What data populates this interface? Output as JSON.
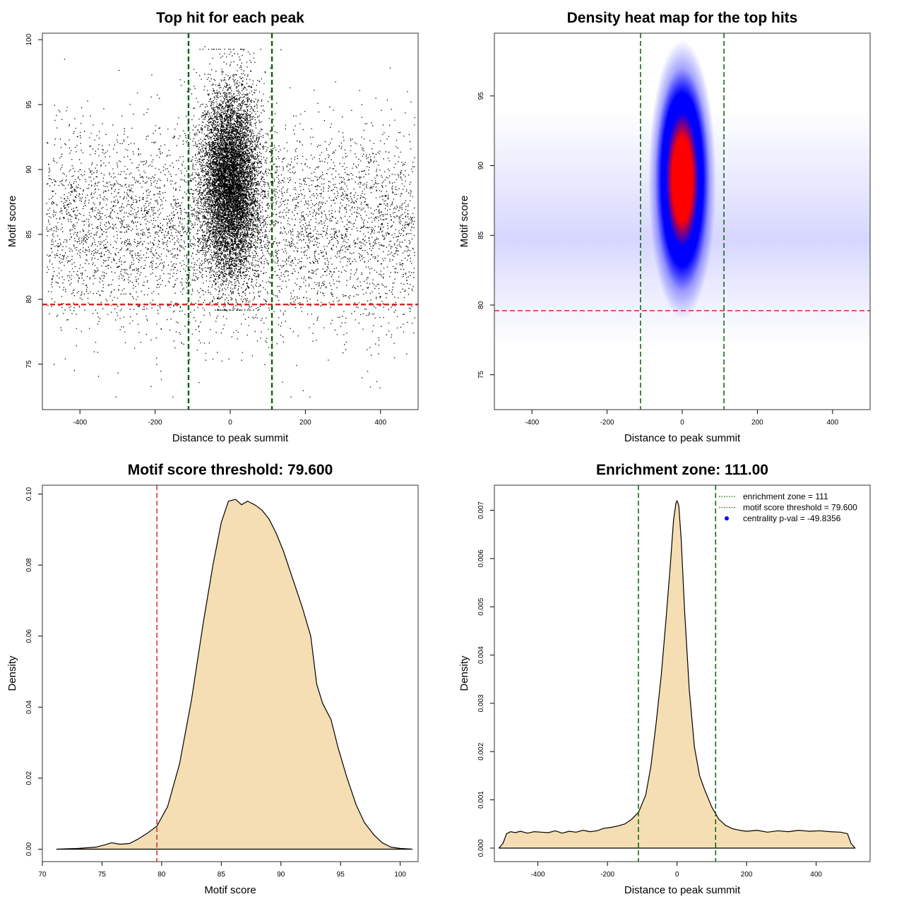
{
  "chart_data": [
    {
      "type": "scatter",
      "title": "Top hit for each peak",
      "xlabel": "Distance to peak summit",
      "ylabel": "Motif score",
      "xlim": [
        -500,
        500
      ],
      "ylim": [
        71.5,
        100.5
      ],
      "x_ticks": [
        -400,
        -200,
        0,
        200,
        400
      ],
      "x_tick_labels": [
        "-400",
        "-200",
        "0",
        "200",
        "400"
      ],
      "y_ticks": [
        75,
        80,
        85,
        90,
        95,
        100
      ],
      "y_tick_labels": [
        "75",
        "80",
        "85",
        "90",
        "95",
        "100"
      ],
      "threshold": {
        "axis": "y",
        "value": 79.6,
        "color": "#d62728",
        "style": "dashed"
      },
      "zone_lines": {
        "axis": "x",
        "values": [
          -111,
          111
        ],
        "color": "#006400",
        "style": "dashed"
      },
      "point_color": "#000000",
      "points_description": {
        "background": {
          "x_range": [
            -490,
            490
          ],
          "y_center": 85.5,
          "y_spread": 3.8,
          "count": 5200
        },
        "central": {
          "x_center": 0,
          "x_spread": 38,
          "y_center": 89,
          "y_spread": 3.6,
          "count": 9000
        }
      }
    },
    {
      "type": "heatmap",
      "title": "Density heat map for the top hits",
      "xlabel": "Distance to peak summit",
      "ylabel": "Motif score",
      "xlim": [
        -500,
        500
      ],
      "ylim": [
        72.5,
        99.5
      ],
      "x_ticks": [
        -400,
        -200,
        0,
        200,
        400
      ],
      "x_tick_labels": [
        "-400",
        "-200",
        "0",
        "200",
        "400"
      ],
      "y_ticks": [
        75,
        80,
        85,
        90,
        95
      ],
      "y_tick_labels": [
        "75",
        "80",
        "85",
        "90",
        "95"
      ],
      "colors": [
        "#ffffff",
        "#0000ff",
        "#ff0000"
      ],
      "peak": {
        "x": 0,
        "y": 89
      },
      "threshold": {
        "axis": "y",
        "value": 79.6,
        "color": "#d62728",
        "style": "dashed"
      },
      "zone_lines": {
        "axis": "x",
        "values": [
          -111,
          111
        ],
        "color": "#006400",
        "style": "dashed"
      }
    },
    {
      "type": "area",
      "title": "Motif score threshold: 79.600",
      "xlabel": "Motif score",
      "ylabel": "Density",
      "xlim": [
        70,
        101.5
      ],
      "ylim": [
        -0.0035,
        0.1025
      ],
      "x_ticks": [
        70,
        75,
        80,
        85,
        90,
        95,
        100
      ],
      "x_tick_labels": [
        "70",
        "75",
        "80",
        "85",
        "90",
        "95",
        "100"
      ],
      "y_ticks": [
        0,
        0.02,
        0.04,
        0.06,
        0.08,
        0.1
      ],
      "y_tick_labels": [
        "0.00",
        "0.02",
        "0.04",
        "0.06",
        "0.08",
        "0.10"
      ],
      "fill": "#f5deb3",
      "x": [
        71.2,
        73,
        74.5,
        75.2,
        75.8,
        76.5,
        77.3,
        78,
        78.8,
        79.6,
        80.5,
        81.5,
        82.5,
        83.5,
        84.3,
        85,
        85.6,
        86.2,
        86.7,
        87.2,
        87.8,
        88.4,
        89,
        89.6,
        90.2,
        91,
        91.8,
        92.5,
        93,
        93.5,
        94.2,
        94.8,
        95.5,
        96.3,
        97,
        97.8,
        98.5,
        99.2,
        100,
        101
      ],
      "y": [
        0,
        0.0002,
        0.0006,
        0.0012,
        0.0018,
        0.0014,
        0.0016,
        0.0028,
        0.0045,
        0.0065,
        0.012,
        0.024,
        0.042,
        0.064,
        0.08,
        0.092,
        0.098,
        0.0985,
        0.097,
        0.098,
        0.097,
        0.0955,
        0.093,
        0.089,
        0.084,
        0.076,
        0.068,
        0.06,
        0.0465,
        0.041,
        0.0365,
        0.0285,
        0.0205,
        0.0125,
        0.0075,
        0.004,
        0.0018,
        0.0006,
        0.0002,
        0
      ],
      "threshold": {
        "axis": "x",
        "value": 79.6,
        "color": "#d62728",
        "style": "dashed"
      }
    },
    {
      "type": "area",
      "title": "Enrichment zone: 111.00",
      "xlabel": "Distance to peak summit",
      "ylabel": "Density",
      "xlim": [
        -525,
        555
      ],
      "ylim": [
        -0.00028,
        0.00752
      ],
      "x_ticks": [
        -400,
        -200,
        0,
        200,
        400
      ],
      "x_tick_labels": [
        "-400",
        "-200",
        "0",
        "200",
        "400"
      ],
      "y_ticks": [
        0,
        0.001,
        0.002,
        0.003,
        0.004,
        0.005,
        0.006,
        0.007
      ],
      "y_tick_labels": [
        "0.000",
        "0.001",
        "0.002",
        "0.003",
        "0.004",
        "0.005",
        "0.006",
        "0.007"
      ],
      "fill": "#f5deb3",
      "x": [
        -512,
        -500,
        -490,
        -478,
        -465,
        -450,
        -430,
        -410,
        -390,
        -370,
        -350,
        -330,
        -310,
        -290,
        -270,
        -250,
        -230,
        -210,
        -190,
        -170,
        -150,
        -130,
        -110,
        -90,
        -75,
        -60,
        -45,
        -32,
        -20,
        -10,
        -3,
        0,
        5,
        12,
        22,
        35,
        50,
        65,
        80,
        100,
        120,
        140,
        160,
        180,
        200,
        230,
        260,
        290,
        320,
        350,
        380,
        410,
        440,
        470,
        490,
        500,
        512
      ],
      "y": [
        0,
        0.0001,
        0.0003,
        0.00034,
        0.00032,
        0.00035,
        0.00031,
        0.00034,
        0.00033,
        0.00032,
        0.00036,
        0.00031,
        0.00035,
        0.00033,
        0.00037,
        0.00034,
        0.00036,
        0.00041,
        0.00043,
        0.00046,
        0.0005,
        0.0006,
        0.00075,
        0.0011,
        0.0017,
        0.0026,
        0.0036,
        0.0047,
        0.0058,
        0.0068,
        0.00715,
        0.0072,
        0.0071,
        0.0064,
        0.0049,
        0.0033,
        0.0021,
        0.0015,
        0.0012,
        0.00085,
        0.0006,
        0.00047,
        0.0004,
        0.00037,
        0.00035,
        0.00037,
        0.00033,
        0.00036,
        0.00034,
        0.00037,
        0.00035,
        0.00036,
        0.00034,
        0.00033,
        0.0003,
        0.0001,
        0
      ],
      "zone_lines": {
        "axis": "x",
        "values": [
          -111,
          111
        ],
        "color": "#006400",
        "style": "dashed"
      },
      "legend": {
        "position": "top-right",
        "entries": [
          {
            "label": "enrichment zone = 111",
            "color": "#006400",
            "symbol": "dotted-line"
          },
          {
            "label": "motif score threshold = 79.600",
            "color": "#ff0000",
            "symbol": "dotted-line"
          },
          {
            "label": "centrality p-val = -49.8356",
            "color": "#0000ff",
            "symbol": "point"
          }
        ]
      }
    }
  ]
}
